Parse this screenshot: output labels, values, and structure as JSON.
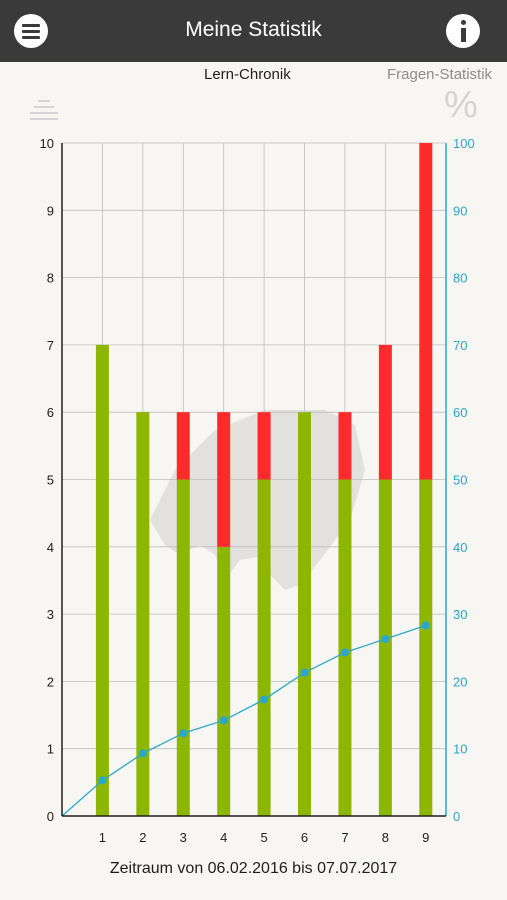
{
  "header": {
    "title": "Meine Statistik",
    "menu_icon": "menu-icon",
    "info_icon": "info-icon"
  },
  "tabs": [
    {
      "label": "Lern-Chronik",
      "icon": "lines-icon",
      "active": true
    },
    {
      "label": "Fragen-Statistik",
      "icon": "percent-icon",
      "active": false
    }
  ],
  "chart_data": {
    "type": "bar",
    "stacked": true,
    "categories": [
      "1",
      "2",
      "3",
      "4",
      "5",
      "6",
      "7",
      "8",
      "9"
    ],
    "series": [
      {
        "color": "#8db600",
        "axis": "left",
        "values": [
          7,
          6,
          5,
          4,
          5,
          6,
          5,
          5,
          5
        ]
      },
      {
        "color": "#ff2a2a",
        "axis": "left",
        "values": [
          0,
          0,
          1,
          2,
          1,
          0,
          1,
          2,
          5
        ]
      },
      {
        "type": "line",
        "color": "#2aa7cc",
        "axis": "right",
        "x": [
          0,
          1,
          2,
          3,
          4,
          5,
          6,
          7,
          8,
          9
        ],
        "values": [
          0,
          5.3,
          9.3,
          12.3,
          14.2,
          17.3,
          21.3,
          24.3,
          26.3,
          28.3
        ]
      }
    ],
    "left_axis": {
      "ylim": [
        0,
        10
      ],
      "ticks": [
        "0",
        "1",
        "2",
        "3",
        "4",
        "5",
        "6",
        "7",
        "8",
        "9",
        "10"
      ],
      "color": "#1e1e1e"
    },
    "right_axis": {
      "ylim": [
        0,
        100
      ],
      "ticks": [
        "0",
        "10",
        "20",
        "30",
        "40",
        "50",
        "60",
        "70",
        "80",
        "90",
        "100"
      ],
      "color": "#2aa7cc"
    },
    "grid": true,
    "legend": "none"
  },
  "footer": {
    "period": "Zeitraum von 06.02.2016 bis 07.07.2017"
  }
}
